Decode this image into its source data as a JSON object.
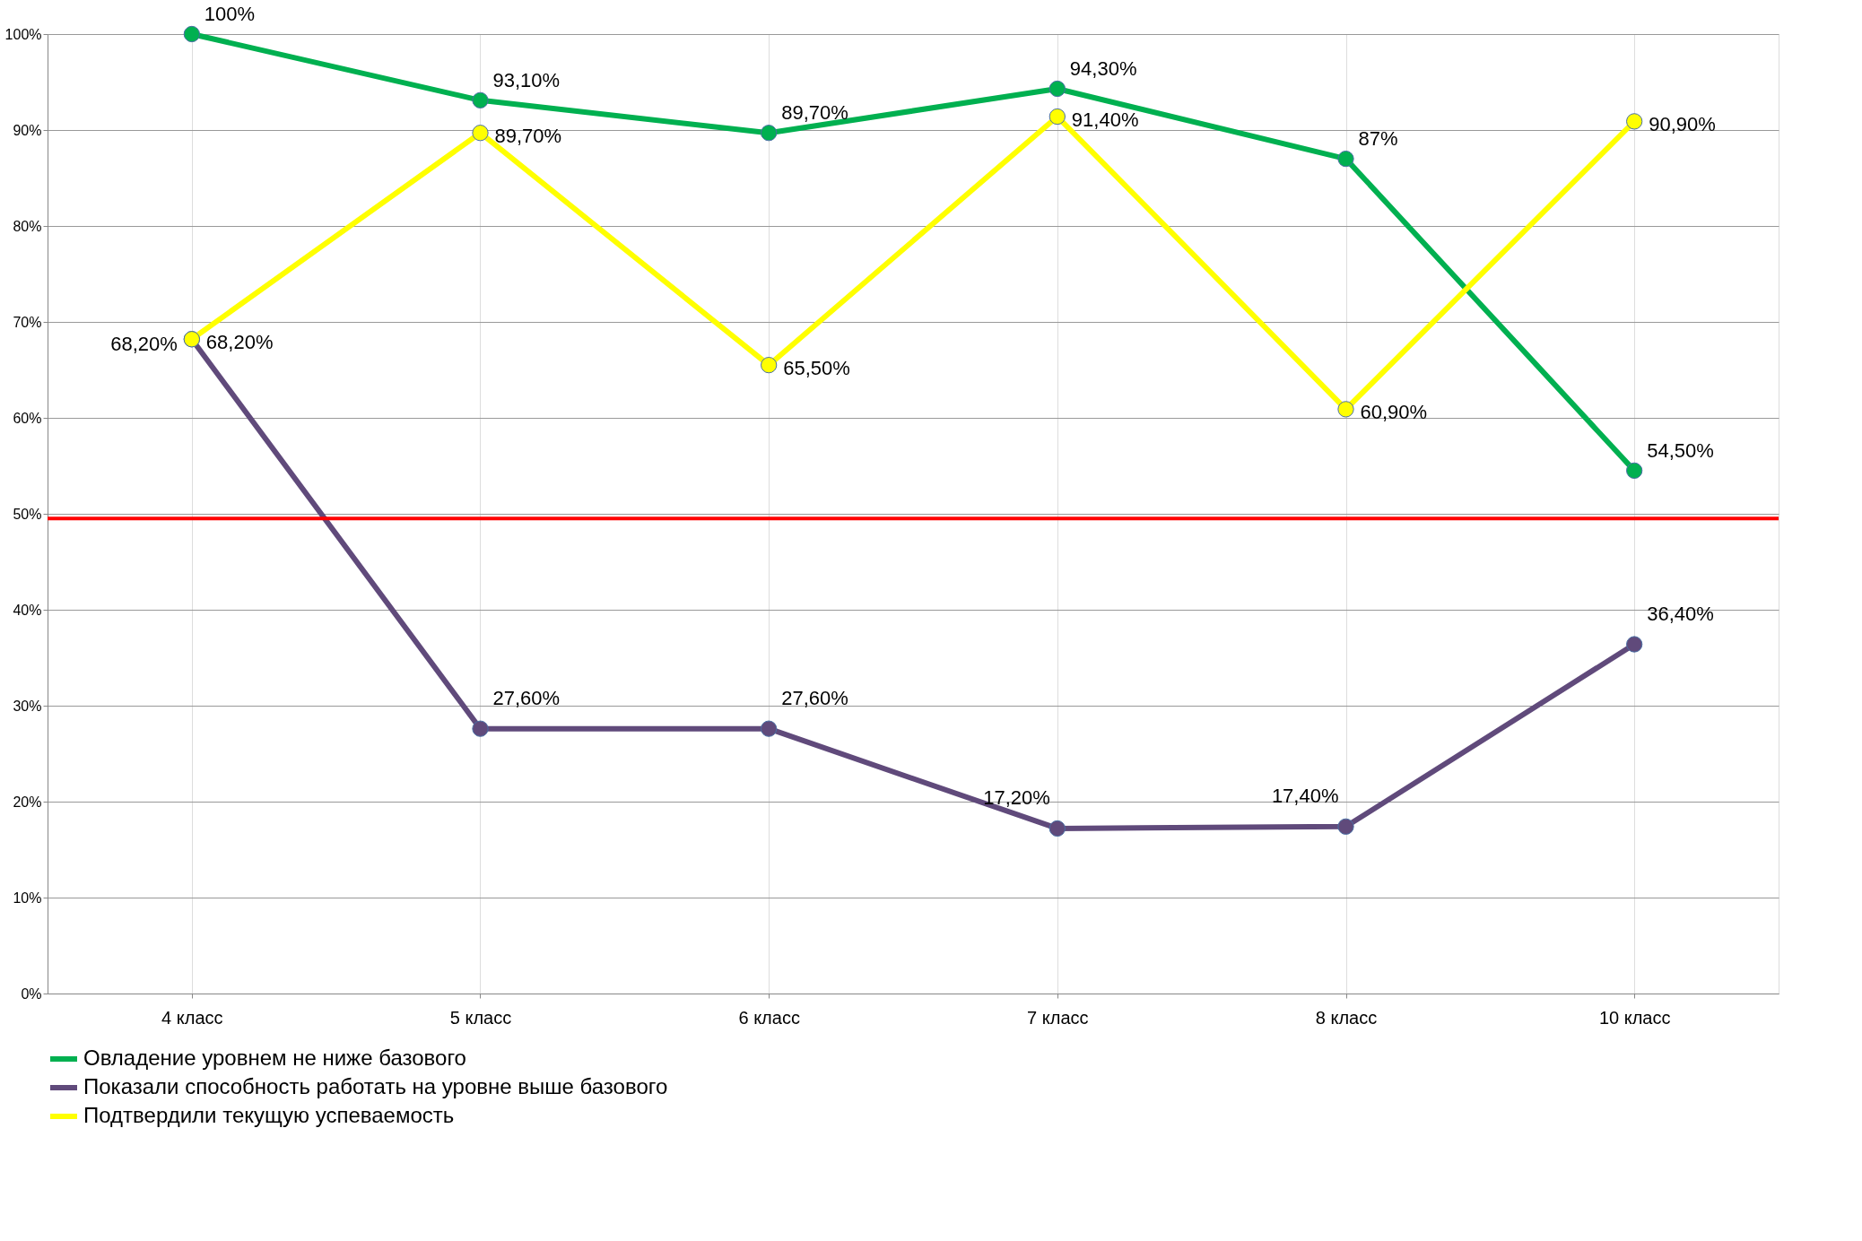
{
  "chart_data": {
    "type": "line",
    "categories": [
      "4 класс",
      "5 класс",
      "6 класс",
      "7 класс",
      "8 класс",
      "10 класс"
    ],
    "series": [
      {
        "name": "Овладение уровнем не ниже базового",
        "color": "#00b050",
        "values": [
          100,
          93.1,
          89.7,
          94.3,
          87,
          54.5
        ],
        "value_labels": [
          "100%",
          "93,10%",
          "89,70%",
          "94,30%",
          "87%",
          "54,50%"
        ]
      },
      {
        "name": "Показали способность работать на уровне выше базового",
        "color": "#604a7b",
        "values": [
          68.2,
          27.6,
          27.6,
          17.2,
          17.4,
          36.4
        ],
        "value_labels": [
          "68,20%",
          "27,60%",
          "27,60%",
          "17,20%",
          "17,40%",
          "36,40%"
        ]
      },
      {
        "name": "Подтвердили текущую успеваемость",
        "color": "#ffff00",
        "values": [
          68.2,
          89.7,
          65.5,
          91.4,
          60.9,
          90.9
        ],
        "value_labels": [
          "68,20%",
          "89,70%",
          "65,50%",
          "91,40%",
          "60,90%",
          "90,90%"
        ]
      }
    ],
    "ylim": [
      0,
      100
    ],
    "yticks": [
      {
        "value": 0,
        "label": "0%"
      },
      {
        "value": 10,
        "label": "10%"
      },
      {
        "value": 20,
        "label": "20%"
      },
      {
        "value": 30,
        "label": "30%"
      },
      {
        "value": 40,
        "label": "40%"
      },
      {
        "value": 50,
        "label": "50%"
      },
      {
        "value": 60,
        "label": "60%"
      },
      {
        "value": 70,
        "label": "70%"
      },
      {
        "value": 80,
        "label": "80%"
      },
      {
        "value": 90,
        "label": "90%"
      },
      {
        "value": 100,
        "label": "100%"
      }
    ],
    "ref_lines": [
      {
        "axis": "y",
        "value": 49.5,
        "color": "#ff0000"
      }
    ],
    "grid": true,
    "legend": "bottom",
    "marker": "circle",
    "line_style": "solid"
  }
}
